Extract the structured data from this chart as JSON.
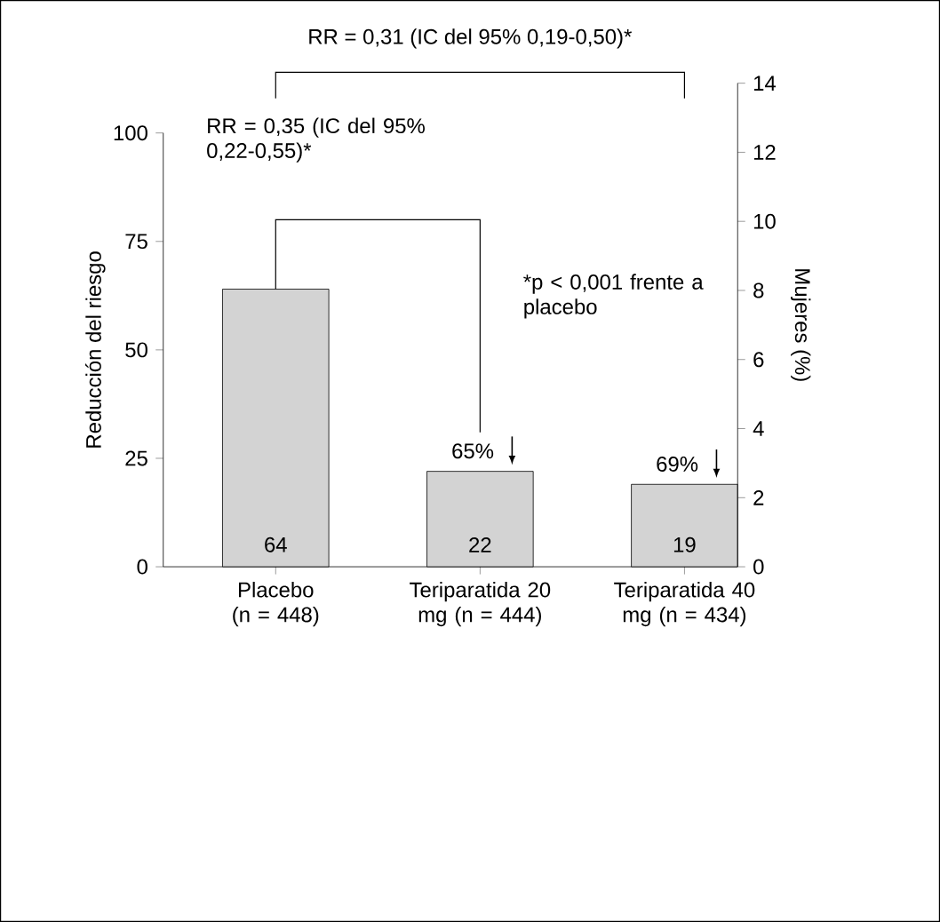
{
  "chart_data": {
    "type": "bar",
    "categories": [
      "Placebo (n = 448)",
      "Teriparatida 20 mg (n = 444)",
      "Teriparatida 40 mg (n = 434)"
    ],
    "values": [
      64,
      22,
      19
    ],
    "color": "#d3d3d3",
    "data_labels": true,
    "ylabel": "Reducción del riesgo",
    "y2label": "Mujeres (%)",
    "ylim": [
      0,
      100
    ],
    "yticks": [
      0,
      25,
      50,
      75,
      100
    ],
    "y2lim": [
      0,
      14
    ],
    "y2ticks": [
      0,
      2,
      4,
      6,
      8,
      10,
      12,
      14
    ],
    "annotations": [
      "RR = 0,31 (IC del 95% 0,19-0,50)*",
      "RR = 0,35 (IC del 95% 0,22-0,55)*",
      "*p < 0,001 frente a placebo",
      {
        "text": "65%",
        "x": "Teriparatida 20 mg (n = 444)",
        "y": 22
      },
      {
        "text": "69%",
        "x": "Teriparatida 40 mg (n = 434)",
        "y": 19
      }
    ],
    "grid": false
  }
}
